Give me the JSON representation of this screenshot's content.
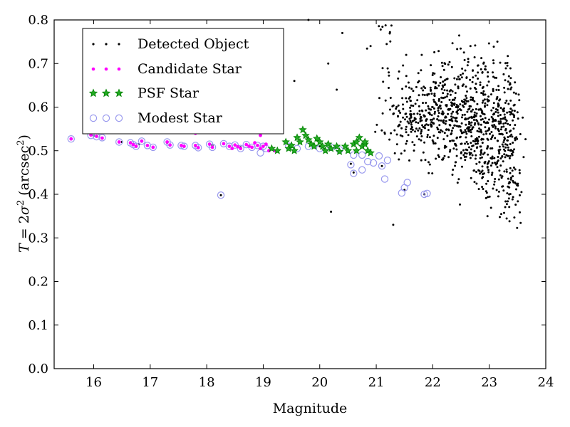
{
  "chart_data": {
    "type": "scatter",
    "xlabel": "Magnitude",
    "ylabel_parts": {
      "lhs": "T",
      "eq": " = 2",
      "sigma": "σ",
      "sq": "2",
      "open": " (arcsec",
      "close": ")"
    },
    "xlim": [
      15.3,
      24.0
    ],
    "ylim": [
      0.0,
      0.8
    ],
    "xticks": [
      16,
      17,
      18,
      19,
      20,
      21,
      22,
      23,
      24
    ],
    "yticks": [
      0.0,
      0.1,
      0.2,
      0.3,
      0.4,
      0.5,
      0.6,
      0.7,
      0.8
    ],
    "ytick_labels": [
      "0.0",
      "0.1",
      "0.2",
      "0.3",
      "0.4",
      "0.5",
      "0.6",
      "0.7",
      "0.8"
    ],
    "legend_position": "top-left",
    "colors": {
      "detected": "#000000",
      "candidate": "#ff00ff",
      "psf": "#008000",
      "modest": "#9999ee"
    },
    "series": [
      {
        "name": "Detected Object",
        "marker": "dot"
      },
      {
        "name": "Candidate Star",
        "marker": "circle"
      },
      {
        "name": "PSF Star",
        "marker": "star"
      },
      {
        "name": "Modest Star",
        "marker": "ring"
      }
    ],
    "points": {
      "modest": [
        [
          15.6,
          0.527
        ],
        [
          15.95,
          0.535
        ],
        [
          16.05,
          0.532
        ],
        [
          16.15,
          0.53
        ],
        [
          16.45,
          0.52
        ],
        [
          16.65,
          0.518
        ],
        [
          16.7,
          0.514
        ],
        [
          16.75,
          0.51
        ],
        [
          16.85,
          0.522
        ],
        [
          16.95,
          0.512
        ],
        [
          17.05,
          0.508
        ],
        [
          17.3,
          0.52
        ],
        [
          17.35,
          0.513
        ],
        [
          17.55,
          0.512
        ],
        [
          17.6,
          0.51
        ],
        [
          17.8,
          0.512
        ],
        [
          17.85,
          0.507
        ],
        [
          18.05,
          0.515
        ],
        [
          18.1,
          0.508
        ],
        [
          18.3,
          0.516
        ],
        [
          18.4,
          0.51
        ],
        [
          18.5,
          0.513
        ],
        [
          18.6,
          0.505
        ],
        [
          18.7,
          0.514
        ],
        [
          18.8,
          0.508
        ],
        [
          18.9,
          0.512
        ],
        [
          19.0,
          0.51
        ],
        [
          19.05,
          0.505
        ],
        [
          18.95,
          0.495
        ],
        [
          18.25,
          0.398
        ],
        [
          19.45,
          0.51
        ],
        [
          19.6,
          0.505
        ],
        [
          19.8,
          0.51
        ],
        [
          20.0,
          0.505
        ],
        [
          20.2,
          0.508
        ],
        [
          20.35,
          0.502
        ],
        [
          20.6,
          0.49
        ],
        [
          20.55,
          0.468
        ],
        [
          20.75,
          0.49
        ],
        [
          20.85,
          0.475
        ],
        [
          20.95,
          0.472
        ],
        [
          20.6,
          0.448
        ],
        [
          20.75,
          0.456
        ],
        [
          21.05,
          0.488
        ],
        [
          21.1,
          0.465
        ],
        [
          21.2,
          0.478
        ],
        [
          21.15,
          0.435
        ],
        [
          21.5,
          0.415
        ],
        [
          21.45,
          0.403
        ],
        [
          21.55,
          0.427
        ],
        [
          21.85,
          0.4
        ],
        [
          21.9,
          0.402
        ]
      ],
      "candidate": [
        [
          15.6,
          0.527
        ],
        [
          15.95,
          0.536
        ],
        [
          16.05,
          0.533
        ],
        [
          16.15,
          0.529
        ],
        [
          16.45,
          0.52
        ],
        [
          16.65,
          0.518
        ],
        [
          16.7,
          0.514
        ],
        [
          16.75,
          0.51
        ],
        [
          16.85,
          0.522
        ],
        [
          16.95,
          0.512
        ],
        [
          17.05,
          0.508
        ],
        [
          17.3,
          0.52
        ],
        [
          17.35,
          0.513
        ],
        [
          17.55,
          0.512
        ],
        [
          17.6,
          0.51
        ],
        [
          17.8,
          0.512
        ],
        [
          17.85,
          0.507
        ],
        [
          17.8,
          0.54
        ],
        [
          18.05,
          0.515
        ],
        [
          18.1,
          0.508
        ],
        [
          18.3,
          0.516
        ],
        [
          18.4,
          0.51
        ],
        [
          18.45,
          0.505
        ],
        [
          18.5,
          0.513
        ],
        [
          18.55,
          0.509
        ],
        [
          18.6,
          0.505
        ],
        [
          18.7,
          0.514
        ],
        [
          18.75,
          0.51
        ],
        [
          18.8,
          0.508
        ],
        [
          18.85,
          0.518
        ],
        [
          18.9,
          0.512
        ],
        [
          18.95,
          0.505
        ],
        [
          19.0,
          0.51
        ],
        [
          19.05,
          0.515
        ],
        [
          18.95,
          0.535
        ],
        [
          19.1,
          0.5
        ],
        [
          19.2,
          0.5
        ]
      ],
      "psf": [
        [
          19.15,
          0.505
        ],
        [
          19.25,
          0.5
        ],
        [
          19.4,
          0.52
        ],
        [
          19.45,
          0.505
        ],
        [
          19.5,
          0.512
        ],
        [
          19.55,
          0.5
        ],
        [
          19.6,
          0.53
        ],
        [
          19.65,
          0.52
        ],
        [
          19.7,
          0.548
        ],
        [
          19.75,
          0.535
        ],
        [
          19.8,
          0.525
        ],
        [
          19.85,
          0.515
        ],
        [
          19.9,
          0.51
        ],
        [
          19.95,
          0.528
        ],
        [
          20.0,
          0.52
        ],
        [
          20.05,
          0.51
        ],
        [
          20.1,
          0.5
        ],
        [
          20.15,
          0.515
        ],
        [
          20.2,
          0.505
        ],
        [
          20.3,
          0.51
        ],
        [
          20.35,
          0.498
        ],
        [
          20.45,
          0.51
        ],
        [
          20.5,
          0.5
        ],
        [
          20.6,
          0.515
        ],
        [
          20.65,
          0.52
        ],
        [
          20.7,
          0.53
        ],
        [
          20.75,
          0.51
        ],
        [
          20.8,
          0.515
        ],
        [
          20.85,
          0.5
        ],
        [
          20.9,
          0.495
        ],
        [
          20.8,
          0.52
        ],
        [
          20.65,
          0.5
        ]
      ]
    }
  }
}
